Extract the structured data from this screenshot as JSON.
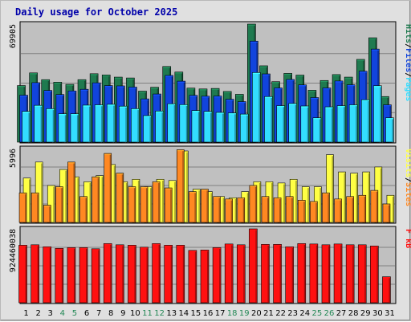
{
  "chart_data": {
    "type": "bar",
    "title": "Daily usage for October 2025",
    "categories": [
      "1",
      "2",
      "3",
      "4",
      "5",
      "6",
      "7",
      "8",
      "9",
      "10",
      "11",
      "12",
      "13",
      "14",
      "15",
      "16",
      "17",
      "18",
      "19",
      "20",
      "21",
      "22",
      "23",
      "24",
      "25",
      "26",
      "27",
      "28",
      "29",
      "30",
      "31"
    ],
    "weekend_days": [
      "4",
      "5",
      "11",
      "12",
      "18",
      "19",
      "25",
      "26"
    ],
    "panels": [
      {
        "name": "requests",
        "ymax": 69905,
        "ymax_label": "69905",
        "grid": true,
        "legend": [
          "Pages",
          "/",
          "Files",
          "/",
          "Hits"
        ],
        "series": [
          {
            "name": "Hits",
            "color": "#1f7a4f",
            "values": [
              33500,
              41000,
              37000,
              35500,
              34200,
              37000,
              40500,
              39800,
              38500,
              38000,
              30200,
              32500,
              44800,
              41500,
              32000,
              31500,
              31800,
              30000,
              28300,
              69900,
              45200,
              35800,
              40700,
              39700,
              30700,
              36500,
              40000,
              38500,
              49000,
              61800,
              27000
            ]
          },
          {
            "name": "Files",
            "color": "#1144dd",
            "values": [
              27800,
              35200,
              30600,
              28200,
              30300,
              31300,
              35100,
              33500,
              33300,
              32600,
              25600,
              28500,
              39500,
              36100,
              27700,
              27200,
              27300,
              25400,
              24000,
              59800,
              40400,
              32100,
              37100,
              33900,
              26400,
              32100,
              36200,
              34000,
              42000,
              55100,
              22100
            ]
          },
          {
            "name": "Pages",
            "color": "#33ddff",
            "values": [
              18200,
              21800,
              19800,
              16800,
              16800,
              21900,
              22100,
              22400,
              21300,
              19800,
              15700,
              18400,
              22700,
              22200,
              18700,
              18200,
              17600,
              17300,
              16600,
              41200,
              27000,
              21600,
              22900,
              21400,
              14400,
              20900,
              21600,
              22100,
              25100,
              33400,
              14400
            ]
          }
        ]
      },
      {
        "name": "visitors",
        "ymax": 5996,
        "ymax_label": "5996",
        "grid": true,
        "legend": [
          "Sites",
          "/",
          "Visits"
        ],
        "series": [
          {
            "name": "Visits",
            "color": "#ffff44",
            "values": [
              3600,
              4900,
              3000,
              4300,
              3700,
              3300,
              3800,
              4700,
              3300,
              3500,
              2900,
              3500,
              3400,
              5800,
              2700,
              2500,
              2100,
              2000,
              2500,
              3300,
              3300,
              3200,
              3500,
              2900,
              2900,
              5500,
              4100,
              4000,
              4100,
              4500,
              2200
            ]
          },
          {
            "name": "Sites",
            "color": "#ff8822",
            "values": [
              2400,
              2400,
              1400,
              2900,
              4900,
              2100,
              3700,
              5600,
              4000,
              2900,
              2900,
              3300,
              2800,
              5900,
              2500,
              2700,
              2100,
              1900,
              2000,
              3000,
              2100,
              2000,
              2100,
              1800,
              1700,
              2400,
              1900,
              2100,
              2200,
              2600,
              1500
            ]
          }
        ]
      },
      {
        "name": "volume",
        "ymax": 924460038,
        "ymax_label": "924460038",
        "grid": true,
        "legend": [
          "kB",
          " ",
          "F"
        ],
        "series": [
          {
            "name": "kB F",
            "color": "#ff1111",
            "values": [
              720000000,
              725000000,
              700000000,
              680000000,
              690000000,
              690000000,
              675000000,
              740000000,
              725000000,
              720000000,
              695000000,
              740000000,
              720000000,
              720000000,
              655000000,
              660000000,
              690000000,
              735000000,
              725000000,
              924460038,
              730000000,
              730000000,
              700000000,
              740000000,
              735000000,
              725000000,
              735000000,
              725000000,
              725000000,
              710000000,
              325000000
            ]
          }
        ]
      }
    ]
  }
}
